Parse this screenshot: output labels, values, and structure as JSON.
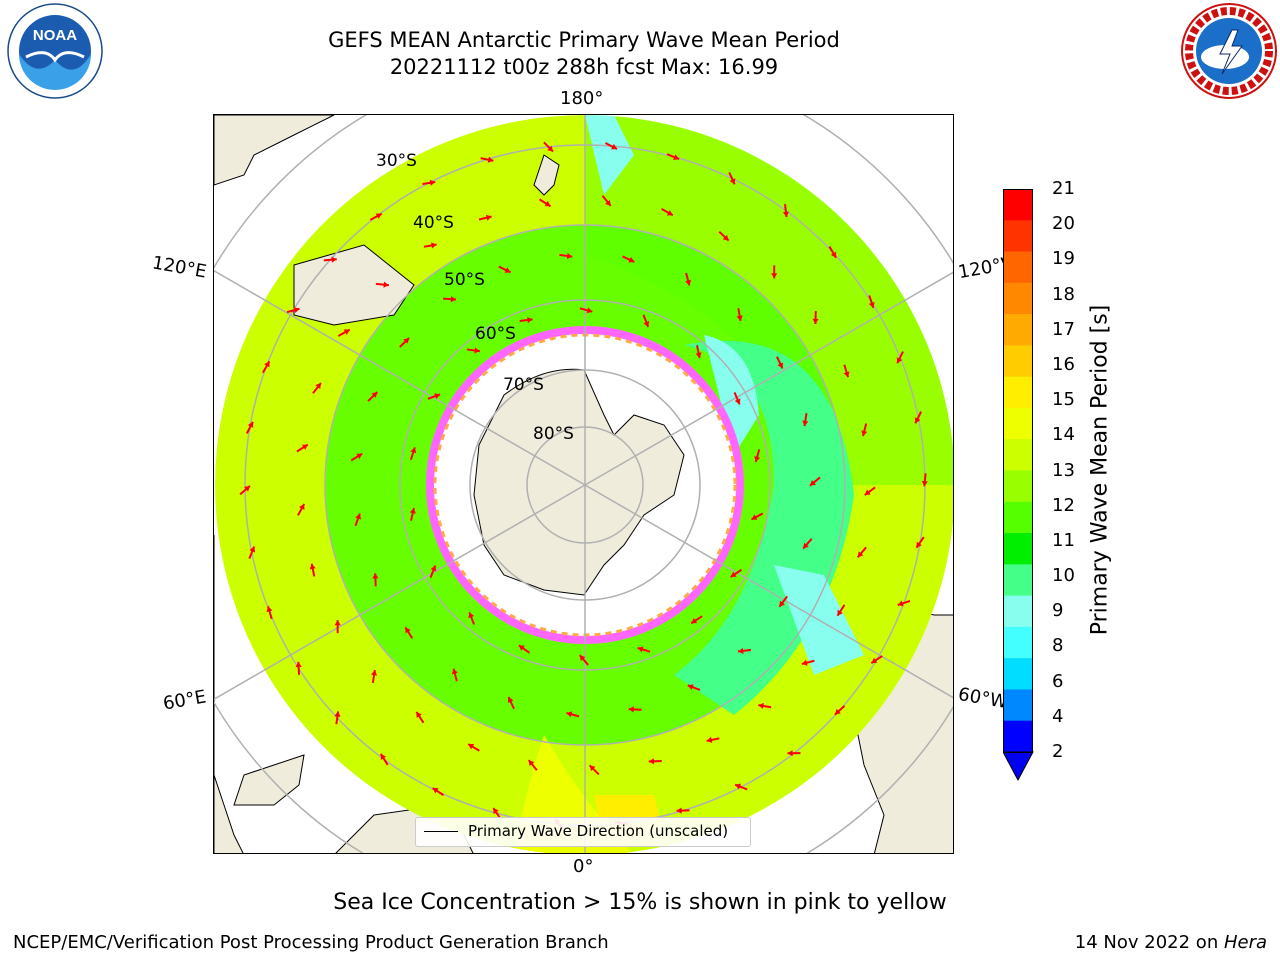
{
  "header": {
    "title_line1": "GEFS MEAN Antarctic Primary Wave Mean Period",
    "title_line2": "20221112 t00z 288h fcst   Max: 16.99"
  },
  "logos": {
    "left": {
      "text": "NOAA",
      "ring_text": "NATIONAL OCEANIC AND ATMOSPHERIC ADMINISTRATION · U.S. DEPARTMENT OF COMMERCE"
    },
    "right": {
      "ring_text": "NATIONAL WEATHER SERVICE"
    }
  },
  "map": {
    "projection": "south polar stereographic",
    "lon_labels": {
      "top": "180°",
      "bottom": "0°",
      "upper_left": "120°E",
      "lower_left": "60°E",
      "upper_right": "120°W",
      "lower_right": "60°W"
    },
    "lat_labels": [
      "30°S",
      "40°S",
      "50°S",
      "60°S",
      "70°S",
      "80°S"
    ],
    "legend": "Primary Wave Direction (unscaled)",
    "arrow_color": "#ff0000",
    "land_color": "#efecdc",
    "sea_ice_color": "#ff66ff"
  },
  "colorbar": {
    "label": "Primary Wave Mean Period [s]",
    "ticks": [
      "21",
      "20",
      "19",
      "18",
      "17",
      "16",
      "15",
      "14",
      "13",
      "12",
      "11",
      "10",
      "9",
      "8",
      "6",
      "4",
      "2"
    ],
    "colors": [
      "#ff0000",
      "#ff3300",
      "#ff6600",
      "#ff8800",
      "#ffaa00",
      "#ffcc00",
      "#ffee00",
      "#eeff00",
      "#ccff00",
      "#99ff00",
      "#55ff00",
      "#00ee00",
      "#44ff88",
      "#88ffee",
      "#44ffff",
      "#00ddff",
      "#0088ff",
      "#0000ff"
    ],
    "extend_color": "#0000ee"
  },
  "caption": "Sea Ice Concentration > 15% is shown in pink to yellow",
  "footer": {
    "left": "NCEP/EMC/Verification Post Processing Product Generation Branch",
    "right_prefix": "14 Nov 2022 on ",
    "right_italic": "Hera"
  }
}
